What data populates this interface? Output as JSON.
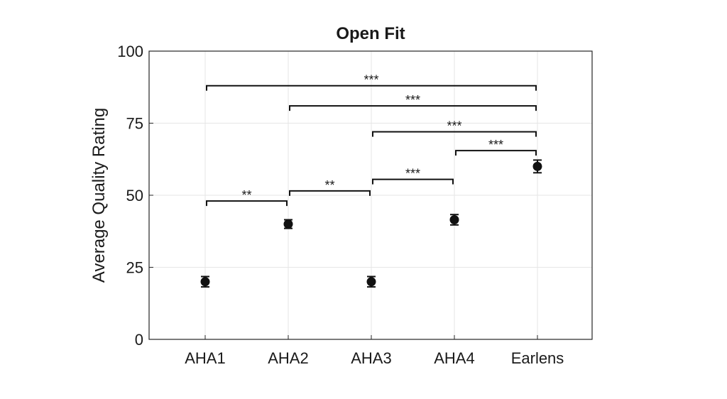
{
  "chart_data": {
    "type": "scatter",
    "title": "Open Fit",
    "xlabel": "",
    "ylabel": "Average Quality Rating",
    "categories": [
      "AHA1",
      "AHA2",
      "AHA3",
      "AHA4",
      "Earlens"
    ],
    "values": [
      20,
      40,
      20,
      41.5,
      60
    ],
    "errors": [
      1.8,
      1.5,
      1.8,
      1.8,
      2.2
    ],
    "ylim": [
      0,
      100
    ],
    "yticks": [
      0,
      25,
      50,
      75,
      100
    ],
    "grid": true,
    "significance": [
      {
        "from": 0,
        "to": 1,
        "y": 48,
        "label": "**"
      },
      {
        "from": 1,
        "to": 2,
        "y": 51.5,
        "label": "**"
      },
      {
        "from": 2,
        "to": 3,
        "y": 55.5,
        "label": "***"
      },
      {
        "from": 3,
        "to": 4,
        "y": 65.5,
        "label": "***"
      },
      {
        "from": 2,
        "to": 4,
        "y": 72,
        "label": "***"
      },
      {
        "from": 1,
        "to": 4,
        "y": 81,
        "label": "***"
      },
      {
        "from": 0,
        "to": 4,
        "y": 88,
        "label": "***"
      }
    ],
    "colors": {
      "marker": "#111111",
      "axis": "#262626",
      "grid": "#e6e6e6"
    }
  }
}
